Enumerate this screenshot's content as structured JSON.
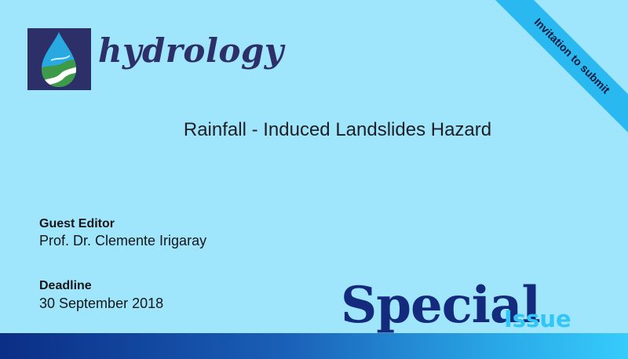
{
  "journal": {
    "name": "hydrology",
    "logo_icon": "water-drop-river-icon"
  },
  "ribbon": {
    "text": "Invitation to submit",
    "color": "#29b8f0"
  },
  "issue": {
    "title": "Rainfall - Induced Landslides Hazard"
  },
  "guest_editor": {
    "label": "Guest Editor",
    "name": "Prof. Dr. Clemente Irigaray"
  },
  "deadline": {
    "label": "Deadline",
    "date": "30 September 2018"
  },
  "special_issue": {
    "word1": "Special",
    "word2": "Issue"
  },
  "colors": {
    "background": "#9fe6fd",
    "brand_navy": "#2d2f68",
    "special_navy": "#142a7c",
    "accent_cyan": "#30c6f7"
  }
}
